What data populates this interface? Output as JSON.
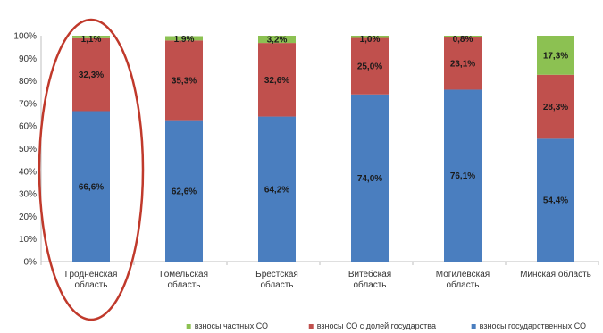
{
  "chart_data": {
    "type": "bar",
    "stacked": true,
    "categories": [
      [
        "Гродненская",
        "область"
      ],
      [
        "Гомельская",
        "область"
      ],
      [
        "Брестская",
        "область"
      ],
      [
        "Витебская",
        "область"
      ],
      [
        "Могилевская",
        "область"
      ],
      [
        "Минская область"
      ]
    ],
    "series": [
      {
        "name": "взносы государственных СО",
        "color": "#4a7ebf",
        "values": [
          66.6,
          62.6,
          64.2,
          74.0,
          76.1,
          54.4
        ],
        "labels": [
          "66,6%",
          "62,6%",
          "64,2%",
          "74,0%",
          "76,1%",
          "54,4%"
        ]
      },
      {
        "name": "взносы СО с долей государства",
        "color": "#c0504d",
        "values": [
          32.3,
          35.3,
          32.6,
          25.0,
          23.1,
          28.3
        ],
        "labels": [
          "32,3%",
          "35,3%",
          "32,6%",
          "25,0%",
          "23,1%",
          "28,3%"
        ]
      },
      {
        "name": "взносы частных СО",
        "color": "#8cc152",
        "values": [
          1.1,
          1.9,
          3.2,
          1.0,
          0.8,
          17.3
        ],
        "labels": [
          "1,1%",
          "1,9%",
          "3,2%",
          "1,0%",
          "0,8%",
          "17,3%"
        ]
      }
    ],
    "yticks": [
      "0%",
      "10%",
      "20%",
      "30%",
      "40%",
      "50%",
      "60%",
      "70%",
      "80%",
      "90%",
      "100%"
    ],
    "ylim": [
      0,
      100
    ],
    "highlighted_category": 0,
    "highlight_color": "#c0392b",
    "legend_position": "bottom",
    "legend_order": [
      2,
      1,
      0
    ],
    "grid": false,
    "title": "",
    "xlabel": "",
    "ylabel": ""
  }
}
